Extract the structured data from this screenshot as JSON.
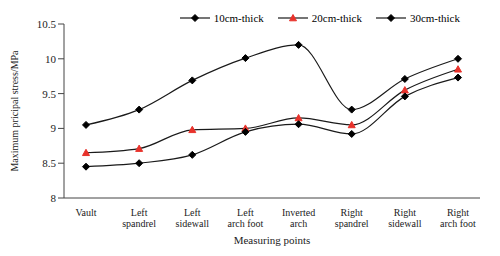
{
  "chart_data": {
    "type": "line",
    "x_label": "Measuring points",
    "y_label": "Maximum pricipal stress/MPa",
    "categories": [
      "Vault",
      "Left spandrel",
      "Left sidewall",
      "Left arch foot",
      "Inverted arch",
      "Right spandrel",
      "Right sidewall",
      "Right arch foot"
    ],
    "series": [
      {
        "name": "10cm-thick",
        "color": "#000000",
        "marker": "diamond",
        "values": [
          9.05,
          9.27,
          9.69,
          10.01,
          10.2,
          9.27,
          9.71,
          10.0
        ]
      },
      {
        "name": "20cm-thick",
        "color": "#e8322b",
        "marker": "triangle",
        "values": [
          8.65,
          8.71,
          8.98,
          9.0,
          9.15,
          9.05,
          9.55,
          9.85
        ]
      },
      {
        "name": "30cm-thick",
        "color": "#000000",
        "marker": "diamond",
        "values": [
          8.45,
          8.5,
          8.62,
          8.95,
          9.06,
          8.92,
          9.46,
          9.73
        ]
      }
    ],
    "ylim": [
      8,
      10.5
    ],
    "yticks": [
      8,
      8.5,
      9,
      9.5,
      10,
      10.5
    ],
    "grid": false,
    "legend": "top",
    "line_style": "smooth"
  }
}
